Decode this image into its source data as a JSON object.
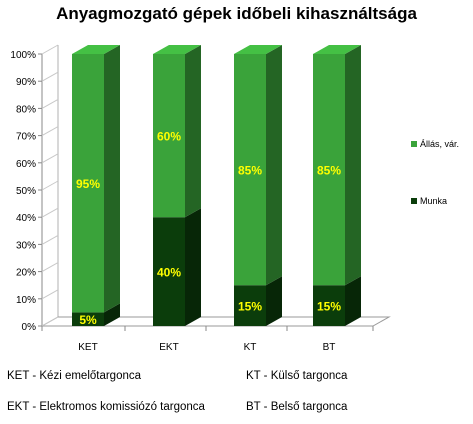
{
  "chart_data": {
    "type": "bar",
    "stacked": true,
    "title": "Anyagmozgató gépek időbeli kihasználtsága",
    "categories": [
      "KET",
      "EKT",
      "KT",
      "BT"
    ],
    "series": [
      {
        "name": "Munka",
        "values": [
          5,
          40,
          15,
          15
        ],
        "color": "#0b3d0b"
      },
      {
        "name": "Állás, vár.",
        "values": [
          95,
          60,
          85,
          85
        ],
        "color": "#3aa33a"
      }
    ],
    "data_labels": [
      [
        "5%",
        "40%",
        "15%",
        "15%"
      ],
      [
        "95%",
        "60%",
        "85%",
        "85%"
      ]
    ],
    "y_ticks": [
      "0%",
      "10%",
      "20%",
      "30%",
      "40%",
      "50%",
      "60%",
      "70%",
      "80%",
      "90%",
      "100%"
    ],
    "ylim": [
      0,
      100
    ],
    "grid": false,
    "legend_position": "right",
    "label_color": "#ffff00"
  },
  "legend": {
    "items": [
      {
        "label": "Állás, vár.",
        "color": "#3aa33a"
      },
      {
        "label": "Munka",
        "color": "#0b3d0b"
      }
    ]
  },
  "notes": {
    "ket": "KET - Kézi emelőtargonca",
    "kt": "KT - Külső targonca",
    "ekt": "EKT - Elektromos komissiózó targonca",
    "bt": "BT - Belső targonca"
  }
}
